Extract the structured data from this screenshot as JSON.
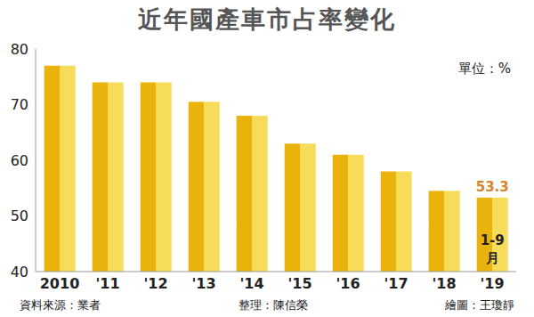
{
  "chart_data": {
    "type": "bar",
    "title": "近年國產車市占率變化",
    "unit_label": "單位：%",
    "categories": [
      "2010",
      "'11",
      "'12",
      "'13",
      "'14",
      "'15",
      "'16",
      "'17",
      "'18",
      "'19"
    ],
    "values": [
      77,
      74,
      74,
      70.5,
      68,
      63,
      61,
      58,
      54.5,
      53.3
    ],
    "value_labels": [
      null,
      null,
      null,
      null,
      null,
      null,
      null,
      null,
      null,
      "53.3"
    ],
    "color": "#eab30c",
    "ylim": [
      40,
      80
    ],
    "yticks": [
      40,
      50,
      60,
      70,
      80
    ],
    "grid": false,
    "annotations": [
      {
        "text": "1-9月",
        "category": "'19"
      }
    ],
    "notes": [
      "資料來源：業者",
      "整理：陳信榮",
      "繪圖：王瓊靜"
    ]
  }
}
